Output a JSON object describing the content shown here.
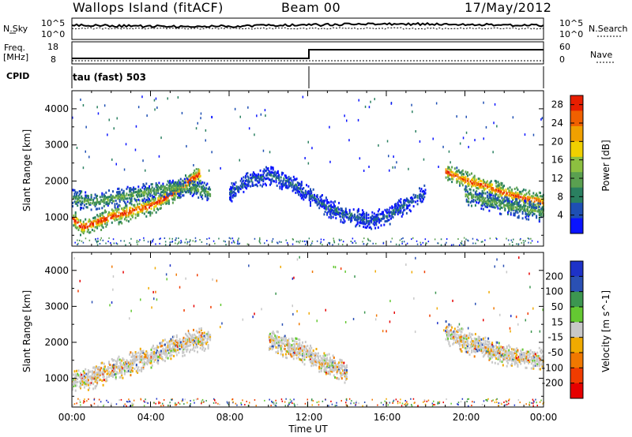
{
  "header": {
    "site": "Wallops Island (fitACF)",
    "beam": "Beam 00",
    "date": "17/May/2012"
  },
  "left_labels": {
    "nsky": "N.Sky",
    "freq_line1": "Freq.",
    "freq_line2": "[MHz]",
    "cpid": "CPID"
  },
  "right_labels": {
    "nsearch": "N.Search",
    "nave": "Nave"
  },
  "status": {
    "noise_ticks": [
      "10^5",
      "10^0"
    ],
    "freq_ticks": [
      "18",
      "8"
    ],
    "nave_ticks": [
      "60",
      "0"
    ],
    "cpid_text": "tau (fast) 503"
  },
  "colors": {
    "power_scale": [
      "#0a14ff",
      "#1e4fb4",
      "#2a8060",
      "#5aa050",
      "#8cc040",
      "#f0d000",
      "#f0a000",
      "#f06000",
      "#e81e00"
    ],
    "velocity_scale": [
      "#1e32c8",
      "#2a50b4",
      "#3c9650",
      "#64c832",
      "#c8c8c8",
      "#f0aa00",
      "#f07800",
      "#f03c00",
      "#e60000"
    ]
  },
  "chart_data": [
    {
      "type": "heatmap",
      "name": "power",
      "title": "",
      "xlabel": "Time UT",
      "ylabel": "Slant Range [km]",
      "x_ticks": [
        "00:00",
        "04:00",
        "08:00",
        "12:00",
        "16:00",
        "20:00",
        "00:00"
      ],
      "y_ticks": [
        1000,
        2000,
        3000,
        4000
      ],
      "xlim_hours": [
        0,
        24
      ],
      "ylim_km": [
        200,
        4500
      ],
      "colorbar": {
        "label": "Power [dB]",
        "ticks": [
          4,
          8,
          12,
          16,
          20,
          24,
          28
        ],
        "range": [
          0,
          30
        ]
      },
      "ridges": [
        {
          "t": [
            0.0,
            0.5,
            1.0,
            2.0,
            3.0,
            4.0,
            5.0,
            6.0,
            6.5
          ],
          "km": [
            1000,
            750,
            850,
            1050,
            1200,
            1350,
            1650,
            2050,
            2250
          ],
          "peak_db": 28
        },
        {
          "t": [
            0.0,
            1.0,
            2.0,
            3.0,
            4.0,
            5.0,
            6.0,
            7.0
          ],
          "km": [
            1550,
            1450,
            1550,
            1650,
            1750,
            1850,
            1850,
            1700
          ],
          "peak_db": 12
        },
        {
          "t": [
            8.0,
            9.0,
            10.0,
            11.0,
            12.0,
            13.0,
            14.0,
            15.0,
            16.0,
            17.0,
            18.0
          ],
          "km": [
            1700,
            2050,
            2200,
            2000,
            1650,
            1300,
            1100,
            950,
            1050,
            1400,
            1700
          ],
          "peak_db": 6
        },
        {
          "t": [
            19.0,
            20.0,
            21.0,
            22.0,
            23.0,
            24.0
          ],
          "km": [
            2300,
            2050,
            1900,
            1700,
            1550,
            1450
          ],
          "peak_db": 26
        },
        {
          "t": [
            20.0,
            21.0,
            22.0,
            23.0,
            24.0
          ],
          "km": [
            1650,
            1500,
            1350,
            1250,
            1150
          ],
          "peak_db": 12
        }
      ]
    },
    {
      "type": "heatmap",
      "name": "velocity",
      "title": "",
      "xlabel": "Time UT",
      "ylabel": "Slant Range [km]",
      "x_ticks": [
        "00:00",
        "04:00",
        "08:00",
        "12:00",
        "16:00",
        "20:00",
        "00:00"
      ],
      "y_ticks": [
        1000,
        2000,
        3000,
        4000
      ],
      "xlim_hours": [
        0,
        24
      ],
      "ylim_km": [
        200,
        4500
      ],
      "colorbar": {
        "label": "Velocity [m s^-1]",
        "ticks": [
          200,
          100,
          50,
          15,
          -15,
          -50,
          -100,
          -200
        ],
        "range": [
          -250,
          250
        ]
      },
      "ridges": [
        {
          "t": [
            0.0,
            1.0,
            2.0,
            3.0,
            4.0,
            5.0,
            6.0,
            7.0
          ],
          "km": [
            950,
            1050,
            1250,
            1450,
            1650,
            1850,
            2050,
            2150
          ],
          "peak_db": 0
        },
        {
          "t": [
            10.0,
            11.0,
            12.0,
            13.0,
            14.0
          ],
          "km": [
            2100,
            1900,
            1700,
            1400,
            1200
          ],
          "peak_db": 0
        },
        {
          "t": [
            19.0,
            20.0,
            21.0,
            22.0,
            23.0,
            24.0
          ],
          "km": [
            2300,
            2050,
            1850,
            1700,
            1600,
            1550
          ],
          "peak_db": 0
        }
      ]
    }
  ]
}
